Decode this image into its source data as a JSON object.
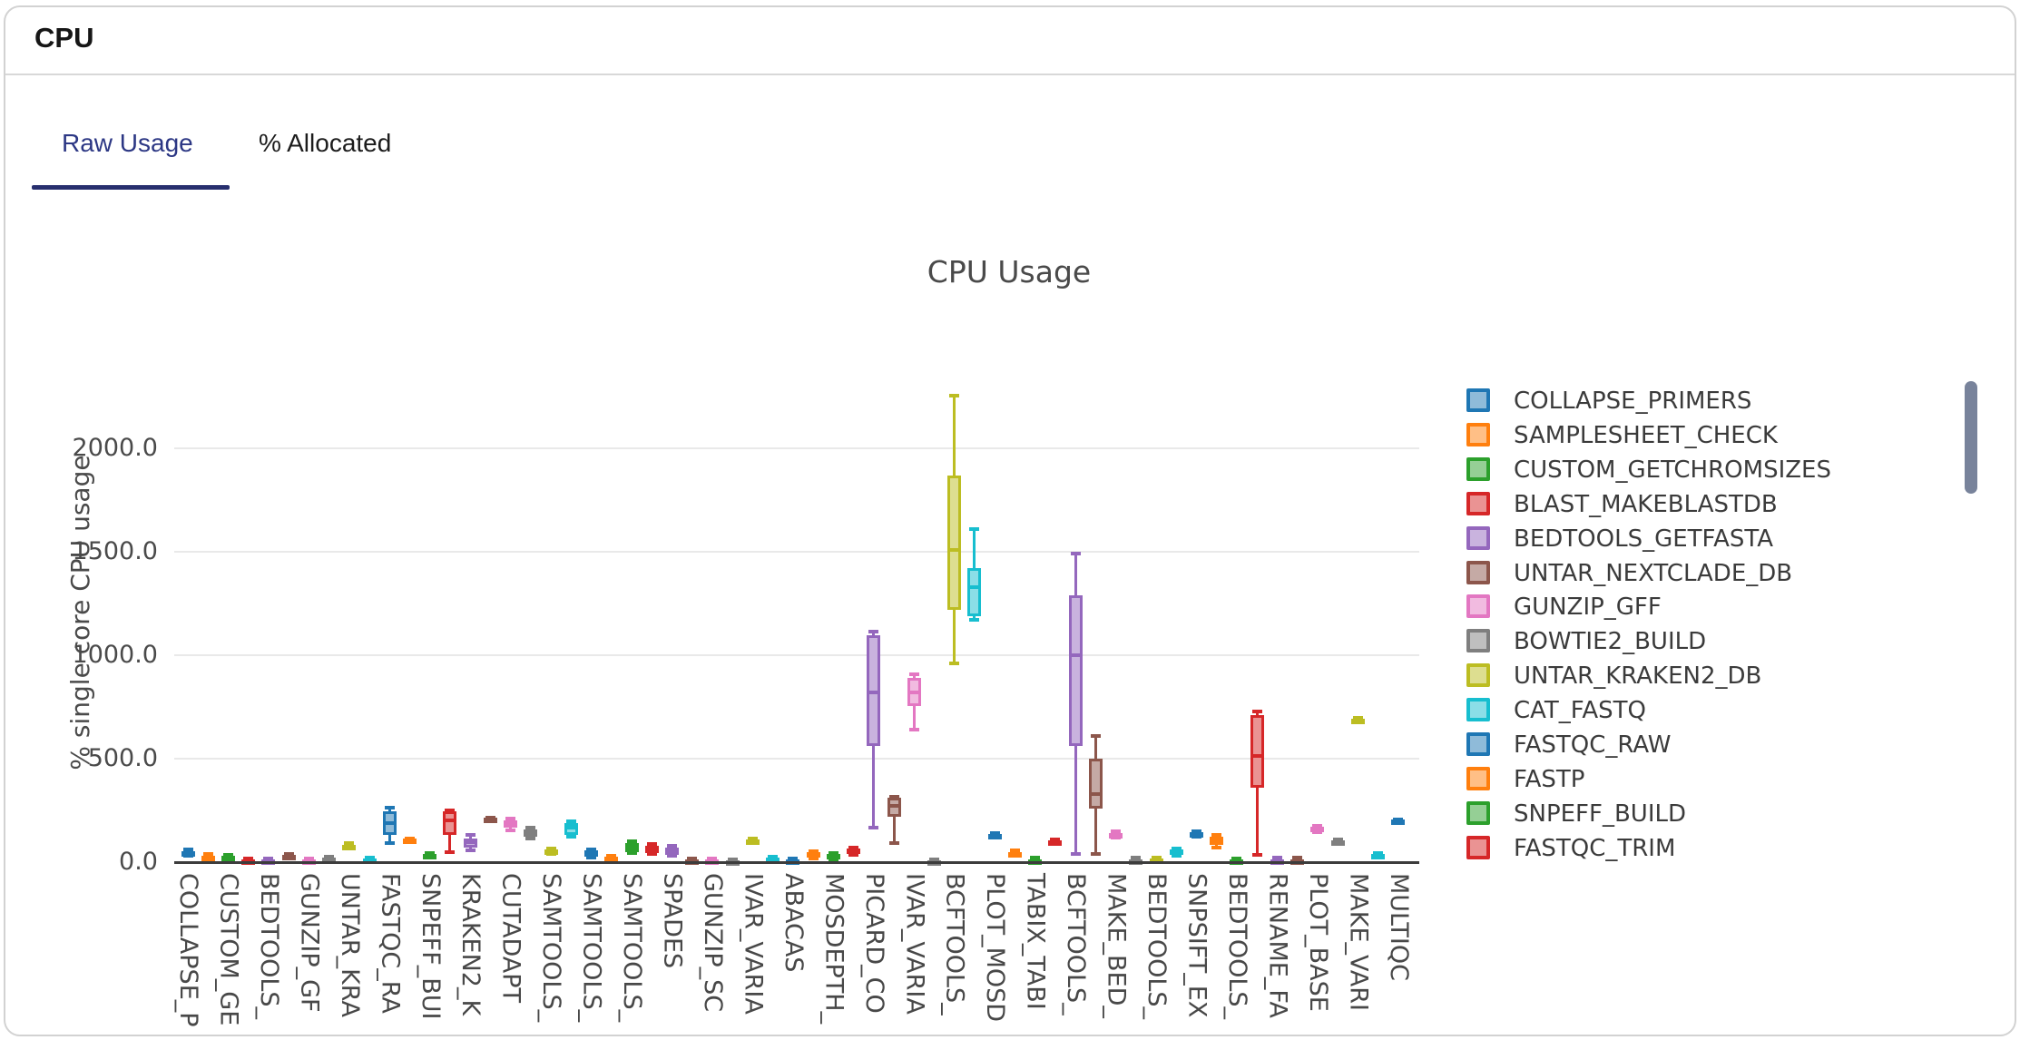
{
  "header": {
    "title": "CPU"
  },
  "tabs": [
    {
      "label": "Raw Usage",
      "active": true
    },
    {
      "label": "% Allocated",
      "active": false
    }
  ],
  "accent_color": "#272f6e",
  "scrollbar_color": "#78839b",
  "chart_data": {
    "type": "box",
    "title": "CPU Usage",
    "ylabel": "% single core CPU usage",
    "ylim": [
      0,
      2300
    ],
    "grid": true,
    "legend_position": "right",
    "yticks": [
      {
        "value": 2000,
        "label": "2000.0"
      },
      {
        "value": 1500,
        "label": "1500.0"
      },
      {
        "value": 1000,
        "label": "1000.0"
      },
      {
        "value": 500,
        "label": "500.0"
      },
      {
        "value": 0,
        "label": "0.0"
      }
    ],
    "palette": {
      "blue": {
        "stroke": "#1f77b4",
        "fill": "#8fbbd9"
      },
      "orange": {
        "stroke": "#ff7f0e",
        "fill": "#ffbf86"
      },
      "green": {
        "stroke": "#2ca02c",
        "fill": "#95cf95"
      },
      "red": {
        "stroke": "#d62728",
        "fill": "#ea9393"
      },
      "purple": {
        "stroke": "#9467bd",
        "fill": "#c9b3de"
      },
      "brown": {
        "stroke": "#8c564b",
        "fill": "#c5aaa5"
      },
      "pink": {
        "stroke": "#e377c2",
        "fill": "#f1bbe0"
      },
      "gray": {
        "stroke": "#7f7f7f",
        "fill": "#bfbfbf"
      },
      "olive": {
        "stroke": "#bcbd22",
        "fill": "#ddde90"
      },
      "cyan": {
        "stroke": "#17becf",
        "fill": "#8bdee7"
      }
    },
    "boxes": [
      {
        "label": "COLLAPSE_P",
        "color": "blue",
        "low": 30,
        "q1": 38,
        "median": 45,
        "q3": 52,
        "high": 60
      },
      {
        "label": "",
        "color": "orange",
        "low": 18,
        "q1": 23,
        "median": 27,
        "q3": 32,
        "high": 38
      },
      {
        "label": "CUSTOM_GE",
        "color": "green",
        "low": 15,
        "q1": 20,
        "median": 25,
        "q3": 30,
        "high": 35
      },
      {
        "label": "",
        "color": "red",
        "low": 4,
        "q1": 7,
        "median": 10,
        "q3": 13,
        "high": 16
      },
      {
        "label": "BEDTOOLS_",
        "color": "purple",
        "low": 4,
        "q1": 7,
        "median": 10,
        "q3": 13,
        "high": 16
      },
      {
        "label": "",
        "color": "brown",
        "low": 20,
        "q1": 26,
        "median": 30,
        "q3": 35,
        "high": 40
      },
      {
        "label": "GUNZIP_GF",
        "color": "pink",
        "low": 4,
        "q1": 7,
        "median": 10,
        "q3": 13,
        "high": 16
      },
      {
        "label": "",
        "color": "gray",
        "low": 10,
        "q1": 14,
        "median": 18,
        "q3": 22,
        "high": 26
      },
      {
        "label": "UNTAR_KRA",
        "color": "olive",
        "low": 65,
        "q1": 68,
        "median": 77,
        "q3": 85,
        "high": 90
      },
      {
        "label": "",
        "color": "cyan",
        "low": 8,
        "q1": 12,
        "median": 15,
        "q3": 18,
        "high": 22
      },
      {
        "label": "FASTQC_RA",
        "color": "blue",
        "low": 90,
        "q1": 130,
        "median": 190,
        "q3": 247,
        "high": 265
      },
      {
        "label": "",
        "color": "orange",
        "low": 95,
        "q1": 97,
        "median": 105,
        "q3": 112,
        "high": 115
      },
      {
        "label": "SNPEFF_BUI",
        "color": "green",
        "low": 22,
        "q1": 24,
        "median": 33,
        "q3": 41,
        "high": 44
      },
      {
        "label": "",
        "color": "red",
        "low": 50,
        "q1": 132,
        "median": 200,
        "q3": 247,
        "high": 252
      },
      {
        "label": "KRAKEN2_K",
        "color": "purple",
        "low": 56,
        "q1": 71,
        "median": 95,
        "q3": 115,
        "high": 130
      },
      {
        "label": "",
        "color": "brown",
        "low": 205,
        "q1": 208,
        "median": 211,
        "q3": 214,
        "high": 217
      },
      {
        "label": "CUTADAPT",
        "color": "pink",
        "low": 152,
        "q1": 166,
        "median": 185,
        "q3": 203,
        "high": 210
      },
      {
        "label": "",
        "color": "gray",
        "low": 115,
        "q1": 122,
        "median": 140,
        "q3": 159,
        "high": 165
      },
      {
        "label": "SAMTOOLS_",
        "color": "olive",
        "low": 38,
        "q1": 41,
        "median": 52,
        "q3": 63,
        "high": 66
      },
      {
        "label": "",
        "color": "cyan",
        "low": 125,
        "q1": 133,
        "median": 165,
        "q3": 190,
        "high": 198
      },
      {
        "label": "SAMTOOLS_",
        "color": "blue",
        "low": 22,
        "q1": 27,
        "median": 45,
        "q3": 57,
        "high": 62
      },
      {
        "label": "",
        "color": "orange",
        "low": 3,
        "q1": 5,
        "median": 15,
        "q3": 27,
        "high": 32
      },
      {
        "label": "SAMTOOLS_",
        "color": "green",
        "low": 45,
        "q1": 49,
        "median": 70,
        "q3": 93,
        "high": 99
      },
      {
        "label": "",
        "color": "red",
        "low": 40,
        "q1": 44,
        "median": 60,
        "q3": 80,
        "high": 86
      },
      {
        "label": "SPADES",
        "color": "purple",
        "low": 32,
        "q1": 35,
        "median": 55,
        "q3": 71,
        "high": 77
      },
      {
        "label": "",
        "color": "brown",
        "low": 0,
        "q1": 2,
        "median": 8,
        "q3": 13,
        "high": 16
      },
      {
        "label": "GUNZIP_SC",
        "color": "pink",
        "low": 0,
        "q1": 2,
        "median": 8,
        "q3": 13,
        "high": 16
      },
      {
        "label": "",
        "color": "gray",
        "low": 0,
        "q1": 1,
        "median": 5,
        "q3": 9,
        "high": 12
      },
      {
        "label": "IVAR_VARIA",
        "color": "olive",
        "low": 90,
        "q1": 93,
        "median": 100,
        "q3": 110,
        "high": 113
      },
      {
        "label": "",
        "color": "cyan",
        "low": 5,
        "q1": 8,
        "median": 15,
        "q3": 22,
        "high": 26
      },
      {
        "label": "ABACAS",
        "color": "blue",
        "low": 0,
        "q1": 2,
        "median": 8,
        "q3": 13,
        "high": 16
      },
      {
        "label": "",
        "color": "orange",
        "low": 18,
        "q1": 22,
        "median": 35,
        "q3": 49,
        "high": 54
      },
      {
        "label": "MOSDEPTH_",
        "color": "green",
        "low": 15,
        "q1": 18,
        "median": 30,
        "q3": 40,
        "high": 45
      },
      {
        "label": "",
        "color": "red",
        "low": 36,
        "q1": 40,
        "median": 50,
        "q3": 66,
        "high": 71
      },
      {
        "label": "PICARD_CO",
        "color": "purple",
        "low": 165,
        "q1": 560,
        "median": 820,
        "q3": 1096,
        "high": 1112
      },
      {
        "label": "",
        "color": "brown",
        "low": 90,
        "q1": 220,
        "median": 270,
        "q3": 310,
        "high": 315
      },
      {
        "label": "IVAR_VARIA",
        "color": "pink",
        "low": 640,
        "q1": 755,
        "median": 820,
        "q3": 890,
        "high": 910
      },
      {
        "label": "",
        "color": "gray",
        "low": 0,
        "q1": 1,
        "median": 5,
        "q3": 9,
        "high": 12
      },
      {
        "label": "BCFTOOLS_",
        "color": "olive",
        "low": 960,
        "q1": 1220,
        "median": 1510,
        "q3": 1870,
        "high": 2255
      },
      {
        "label": "",
        "color": "cyan",
        "low": 1170,
        "q1": 1190,
        "median": 1330,
        "q3": 1420,
        "high": 1610
      },
      {
        "label": "PLOT_MOSD",
        "color": "blue",
        "low": 120,
        "q1": 125,
        "median": 130,
        "q3": 135,
        "high": 140
      },
      {
        "label": "",
        "color": "orange",
        "low": 35,
        "q1": 40,
        "median": 45,
        "q3": 50,
        "high": 55
      },
      {
        "label": "TABIX_TABI",
        "color": "green",
        "low": 2,
        "q1": 5,
        "median": 10,
        "q3": 15,
        "high": 20
      },
      {
        "label": "",
        "color": "red",
        "low": 90,
        "q1": 95,
        "median": 100,
        "q3": 105,
        "high": 110
      },
      {
        "label": "BCFTOOLS_",
        "color": "purple",
        "low": 40,
        "q1": 560,
        "median": 1000,
        "q3": 1290,
        "high": 1490
      },
      {
        "label": "",
        "color": "brown",
        "low": 40,
        "q1": 260,
        "median": 330,
        "q3": 500,
        "high": 610
      },
      {
        "label": "MAKE_BED_",
        "color": "pink",
        "low": 120,
        "q1": 127,
        "median": 133,
        "q3": 140,
        "high": 147
      },
      {
        "label": "",
        "color": "gray",
        "low": 2,
        "q1": 5,
        "median": 10,
        "q3": 15,
        "high": 20
      },
      {
        "label": "BEDTOOLS_",
        "color": "olive",
        "low": 8,
        "q1": 11,
        "median": 15,
        "q3": 19,
        "high": 23
      },
      {
        "label": "",
        "color": "cyan",
        "low": 30,
        "q1": 40,
        "median": 50,
        "q3": 60,
        "high": 66
      },
      {
        "label": "SNPSIFT_EX",
        "color": "blue",
        "low": 125,
        "q1": 130,
        "median": 137,
        "q3": 143,
        "high": 148
      },
      {
        "label": "",
        "color": "orange",
        "low": 70,
        "q1": 85,
        "median": 100,
        "q3": 125,
        "high": 133
      },
      {
        "label": "BEDTOOLS_",
        "color": "green",
        "low": 0,
        "q1": 3,
        "median": 8,
        "q3": 14,
        "high": 18
      },
      {
        "label": "",
        "color": "red",
        "low": 35,
        "q1": 360,
        "median": 515,
        "q3": 710,
        "high": 727
      },
      {
        "label": "RENAME_FA",
        "color": "purple",
        "low": 2,
        "q1": 5,
        "median": 10,
        "q3": 15,
        "high": 20
      },
      {
        "label": "",
        "color": "brown",
        "low": 2,
        "q1": 5,
        "median": 10,
        "q3": 15,
        "high": 20
      },
      {
        "label": "PLOT_BASE",
        "color": "pink",
        "low": 145,
        "q1": 152,
        "median": 160,
        "q3": 170,
        "high": 177
      },
      {
        "label": "",
        "color": "gray",
        "low": 95,
        "q1": 99,
        "median": 103,
        "q3": 107,
        "high": 111
      },
      {
        "label": "MAKE_VARI",
        "color": "olive",
        "low": 680,
        "q1": 684,
        "median": 688,
        "q3": 692,
        "high": 696
      },
      {
        "label": "",
        "color": "cyan",
        "low": 28,
        "q1": 32,
        "median": 36,
        "q3": 40,
        "high": 44
      },
      {
        "label": "MULTIQC",
        "color": "blue",
        "low": 190,
        "q1": 194,
        "median": 199,
        "q3": 204,
        "high": 208
      }
    ],
    "legend": [
      {
        "label": "COLLAPSE_PRIMERS",
        "color": "blue"
      },
      {
        "label": "SAMPLESHEET_CHECK",
        "color": "orange"
      },
      {
        "label": "CUSTOM_GETCHROMSIZES",
        "color": "green"
      },
      {
        "label": "BLAST_MAKEBLASTDB",
        "color": "red"
      },
      {
        "label": "BEDTOOLS_GETFASTA",
        "color": "purple"
      },
      {
        "label": "UNTAR_NEXTCLADE_DB",
        "color": "brown"
      },
      {
        "label": "GUNZIP_GFF",
        "color": "pink"
      },
      {
        "label": "BOWTIE2_BUILD",
        "color": "gray"
      },
      {
        "label": "UNTAR_KRAKEN2_DB",
        "color": "olive"
      },
      {
        "label": "CAT_FASTQ",
        "color": "cyan"
      },
      {
        "label": "FASTQC_RAW",
        "color": "blue"
      },
      {
        "label": "FASTP",
        "color": "orange"
      },
      {
        "label": "SNPEFF_BUILD",
        "color": "green"
      },
      {
        "label": "FASTQC_TRIM",
        "color": "red"
      }
    ]
  }
}
